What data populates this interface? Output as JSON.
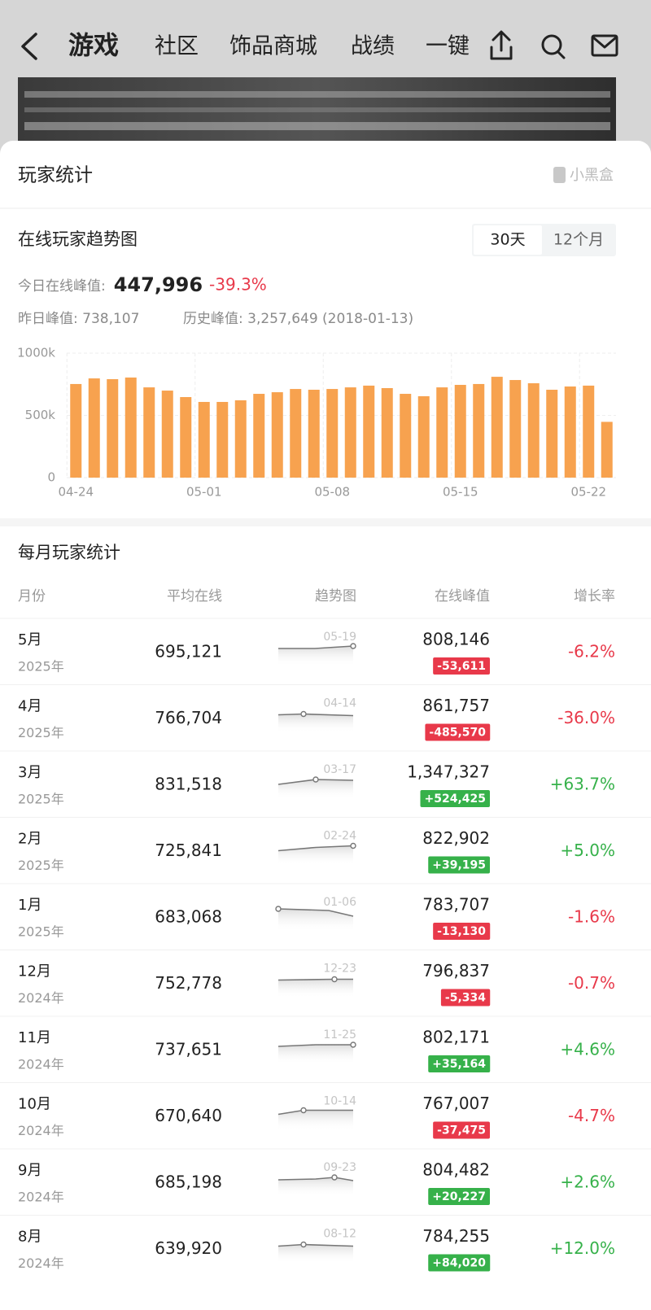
{
  "nav": {
    "title": "游戏",
    "tabs": [
      "社区",
      "饰品商城",
      "战绩",
      "一键"
    ]
  },
  "card": {
    "title": "玩家统计",
    "brand": "小黑盒"
  },
  "trend": {
    "title": "在线玩家趋势图",
    "tabs": [
      "30天",
      "12个月"
    ],
    "today_label": "今日在线峰值:",
    "today_value": "447,996",
    "today_change": "-39.3%",
    "yesterday": "昨日峰值: 738,107",
    "history": "历史峰值: 3,257,649 (2018-01-13)"
  },
  "chart_data": {
    "type": "bar",
    "color": "#f7a24f",
    "grid": true,
    "categories": [
      "04-24",
      null,
      null,
      null,
      null,
      null,
      null,
      "05-01",
      null,
      null,
      null,
      null,
      null,
      null,
      "05-08",
      null,
      null,
      null,
      null,
      null,
      null,
      "05-15",
      null,
      null,
      null,
      null,
      null,
      null,
      "05-22",
      null
    ],
    "values": [
      752000,
      797000,
      791000,
      804000,
      725000,
      699000,
      647000,
      608000,
      608000,
      621000,
      673000,
      686000,
      712000,
      706000,
      712000,
      725000,
      739000,
      719000,
      673000,
      654000,
      725000,
      745000,
      752000,
      810000,
      784000,
      758000,
      706000,
      732000,
      739000,
      448000
    ],
    "ylim": [
      0,
      1000000
    ],
    "yticks": [
      0,
      {
        "value": 500000,
        "label": "500k"
      },
      {
        "value": 1000000,
        "label": "1000k"
      }
    ]
  },
  "monthly": {
    "title": "每月玩家统计",
    "headers": [
      "月份",
      "平均在线",
      "趋势图",
      "在线峰值",
      "增长率"
    ],
    "rows": [
      {
        "month": "5月",
        "year": "2025年",
        "avg": "695,121",
        "peak_date": "05-19",
        "peak": "808,146",
        "diff": "-53,611",
        "growth": "-6.2%"
      },
      {
        "month": "4月",
        "year": "2025年",
        "avg": "766,704",
        "peak_date": "04-14",
        "peak": "861,757",
        "diff": "-485,570",
        "growth": "-36.0%"
      },
      {
        "month": "3月",
        "year": "2025年",
        "avg": "831,518",
        "peak_date": "03-17",
        "peak": "1,347,327",
        "diff": "+524,425",
        "growth": "+63.7%"
      },
      {
        "month": "2月",
        "year": "2025年",
        "avg": "725,841",
        "peak_date": "02-24",
        "peak": "822,902",
        "diff": "+39,195",
        "growth": "+5.0%"
      },
      {
        "month": "1月",
        "year": "2025年",
        "avg": "683,068",
        "peak_date": "01-06",
        "peak": "783,707",
        "diff": "-13,130",
        "growth": "-1.6%"
      },
      {
        "month": "12月",
        "year": "2024年",
        "avg": "752,778",
        "peak_date": "12-23",
        "peak": "796,837",
        "diff": "-5,334",
        "growth": "-0.7%"
      },
      {
        "month": "11月",
        "year": "2024年",
        "avg": "737,651",
        "peak_date": "11-25",
        "peak": "802,171",
        "diff": "+35,164",
        "growth": "+4.6%"
      },
      {
        "month": "10月",
        "year": "2024年",
        "avg": "670,640",
        "peak_date": "10-14",
        "peak": "767,007",
        "diff": "-37,475",
        "growth": "-4.7%"
      },
      {
        "month": "9月",
        "year": "2024年",
        "avg": "685,198",
        "peak_date": "09-23",
        "peak": "804,482",
        "diff": "+20,227",
        "growth": "+2.6%"
      },
      {
        "month": "8月",
        "year": "2024年",
        "avg": "639,920",
        "peak_date": "08-12",
        "peak": "784,255",
        "diff": "+84,020",
        "growth": "+12.0%"
      }
    ]
  }
}
